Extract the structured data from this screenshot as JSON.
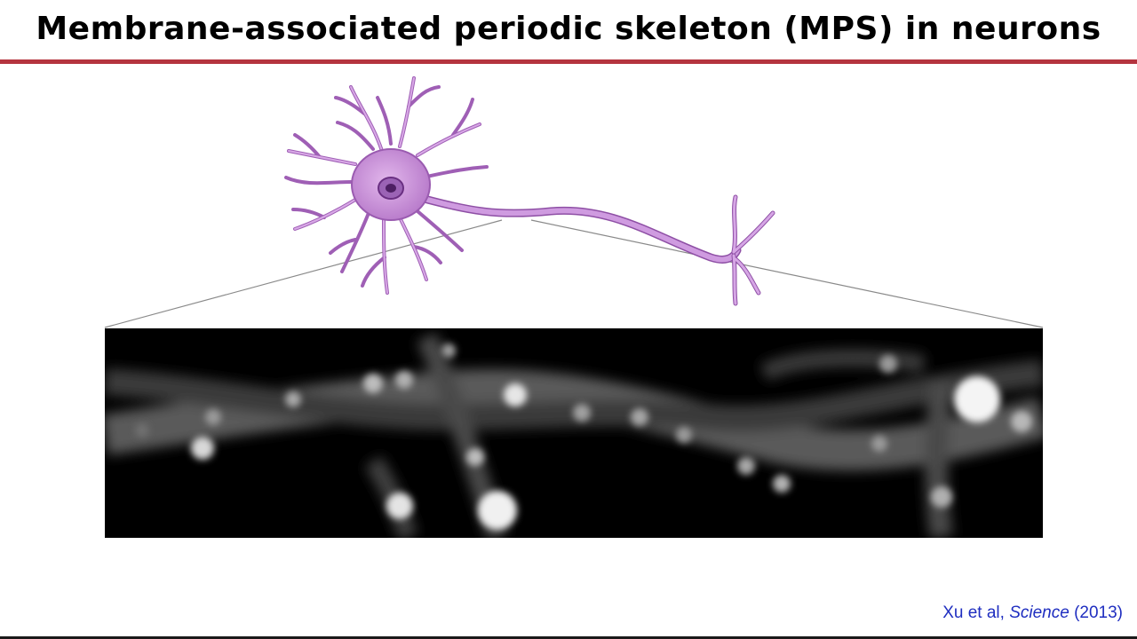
{
  "slide": {
    "title": "Membrane-associated periodic skeleton (MPS) in neurons",
    "accent_color": "#b5343f"
  },
  "figure": {
    "neuron_color": "#c58fd6",
    "neuron_outline": "#8e4fa5",
    "micrograph_background": "#000000"
  },
  "citation": {
    "authors": "Xu et al, ",
    "journal": "Science",
    "year": " (2013)",
    "color": "#1f2ec0"
  }
}
